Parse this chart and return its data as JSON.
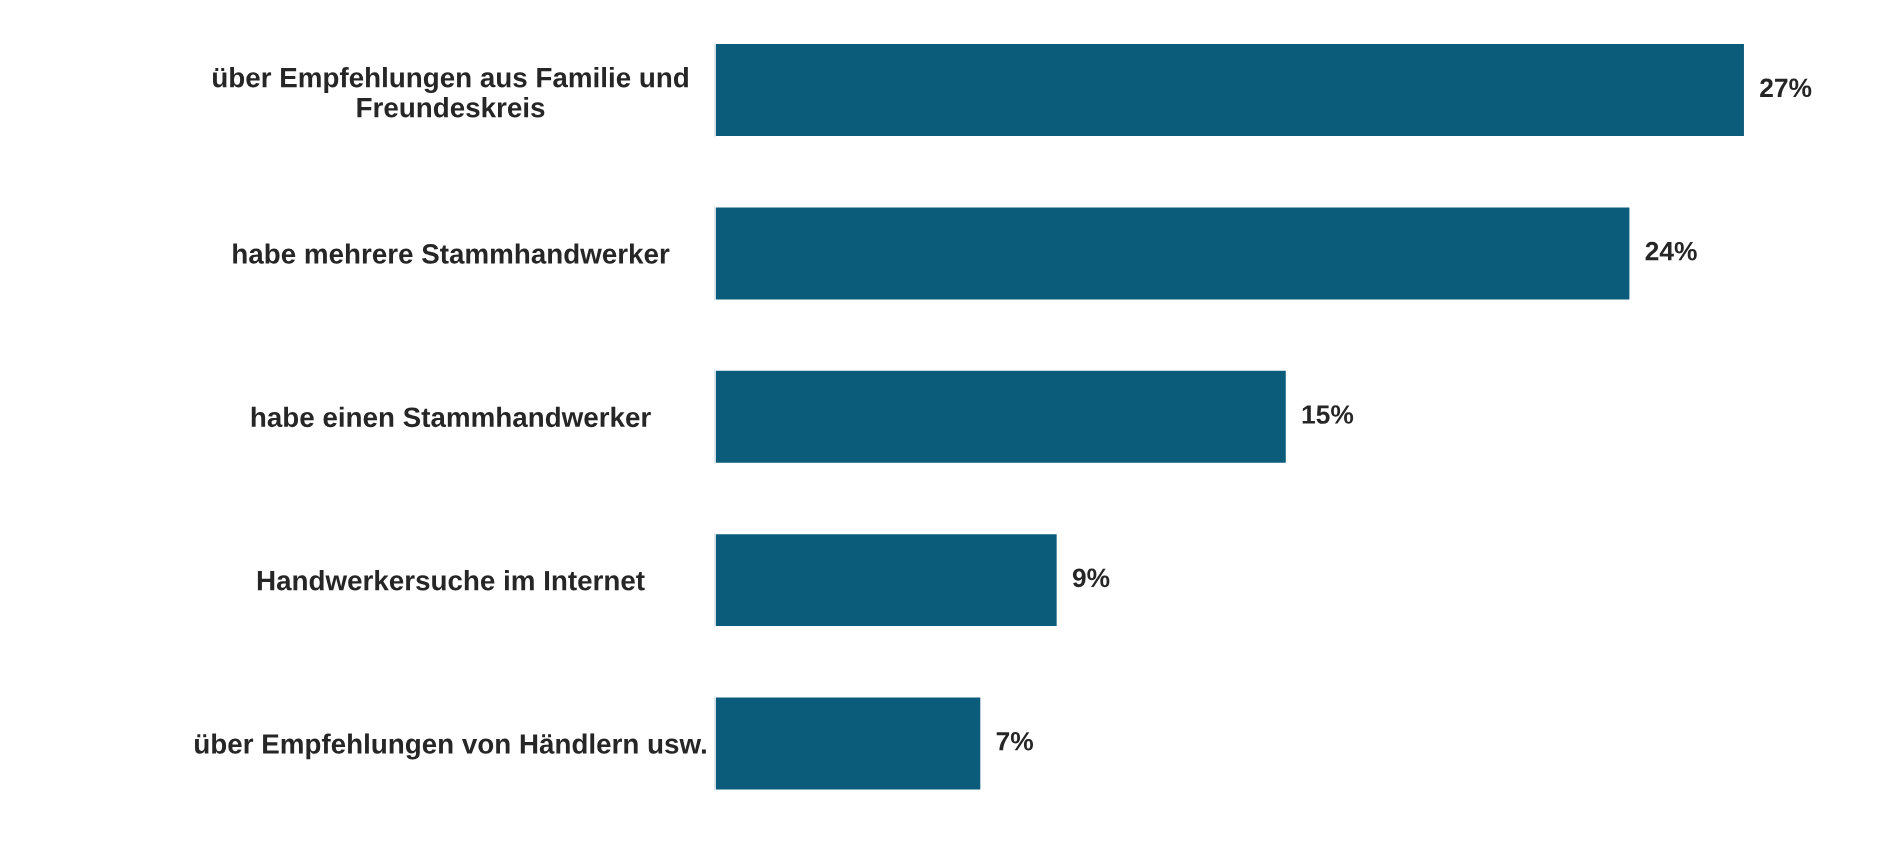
{
  "chart_data": {
    "type": "bar",
    "orientation": "horizontal",
    "categories": [
      "über Empfehlungen aus Familie und\nFreundeskreis",
      "habe mehrere Stammhandwerker",
      "habe einen Stammhandwerker",
      "Handwerkersuche im Internet",
      "über Empfehlungen von Händlern usw."
    ],
    "values": [
      27,
      24,
      15,
      9,
      7
    ],
    "value_labels": [
      "27%",
      "24%",
      "15%",
      "9%",
      "7%"
    ],
    "color": "#0b5c7a"
  }
}
